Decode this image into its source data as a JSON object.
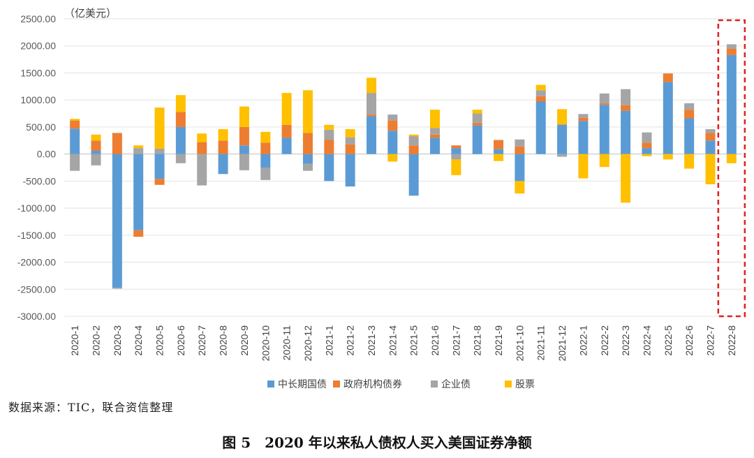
{
  "chart_data": {
    "type": "bar",
    "stacked": true,
    "unit_label": "（亿美元）",
    "categories": [
      "2020-1",
      "2020-2",
      "2020-3",
      "2020-4",
      "2020-5",
      "2020-6",
      "2020-7",
      "2020-8",
      "2020-9",
      "2020-10",
      "2020-11",
      "2020-12",
      "2021-1",
      "2021-2",
      "2021-3",
      "2021-4",
      "2021-5",
      "2021-6",
      "2021-7",
      "2021-8",
      "2021-9",
      "2021-10",
      "2021-11",
      "2021-12",
      "2022-1",
      "2022-2",
      "2022-3",
      "2022-4",
      "2022-5",
      "2022-6",
      "2022-7",
      "2022-8"
    ],
    "ylim": [
      -3000,
      2500
    ],
    "yticks": [
      -3000,
      -2500,
      -2000,
      -1500,
      -1000,
      -500,
      0,
      500,
      1000,
      1500,
      2000,
      2500
    ],
    "ytick_labels": [
      "-3000.00",
      "-2500.00",
      "-2000.00",
      "-1500.00",
      "-1000.00",
      "-500.00",
      "0.00",
      "500.00",
      "1000.00",
      "1500.00",
      "2000.00",
      "2500.00"
    ],
    "series": [
      {
        "name": "中长期国债",
        "color": "#5B9BD5",
        "values": [
          470,
          60,
          -2470,
          -1410,
          -460,
          500,
          0,
          -370,
          160,
          -250,
          300,
          -180,
          -500,
          -600,
          700,
          430,
          -770,
          300,
          110,
          530,
          90,
          -500,
          970,
          540,
          610,
          910,
          800,
          110,
          1330,
          660,
          250,
          1830
        ]
      },
      {
        "name": "政府机构债券",
        "color": "#ED7D31",
        "values": [
          150,
          190,
          390,
          -120,
          -110,
          280,
          220,
          250,
          340,
          210,
          240,
          390,
          260,
          180,
          30,
          190,
          160,
          60,
          50,
          50,
          170,
          140,
          100,
          10,
          60,
          30,
          100,
          100,
          160,
          160,
          140,
          120
        ]
      },
      {
        "name": "企业债",
        "color": "#A5A5A5",
        "values": [
          -310,
          -210,
          -20,
          110,
          100,
          -170,
          -580,
          0,
          -300,
          -230,
          0,
          -130,
          190,
          130,
          400,
          110,
          170,
          120,
          -100,
          170,
          0,
          130,
          110,
          -50,
          70,
          180,
          300,
          190,
          0,
          120,
          70,
          80
        ]
      },
      {
        "name": "股票",
        "color": "#FFC000",
        "values": [
          30,
          110,
          0,
          50,
          760,
          310,
          160,
          210,
          380,
          200,
          590,
          790,
          90,
          150,
          280,
          -140,
          30,
          340,
          -290,
          70,
          -130,
          -230,
          100,
          280,
          -450,
          -240,
          -900,
          -40,
          -100,
          -270,
          -560,
          -170
        ]
      }
    ],
    "legend_position": "bottom",
    "highlight": {
      "category": "2022-8",
      "style": "red-dashed-box"
    }
  },
  "source_note": "数据来源：TIC，联合资信整理",
  "caption": "图 5　2020 年以来私人债权人买入美国证券净额"
}
